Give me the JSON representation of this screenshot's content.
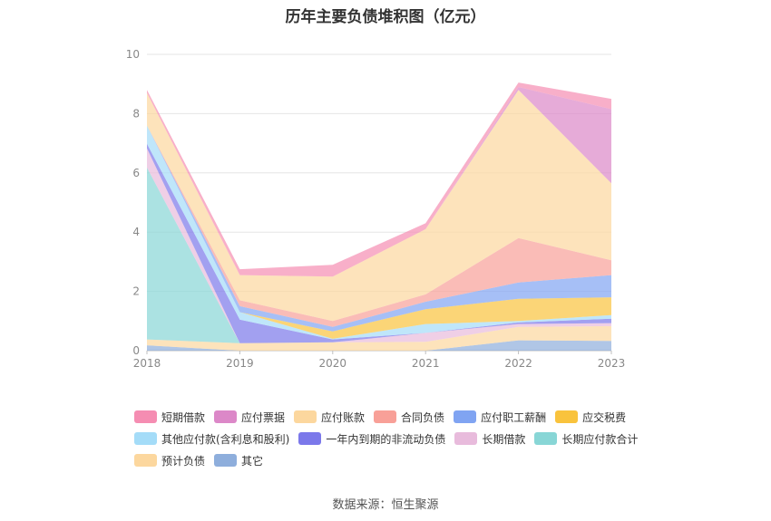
{
  "chart_data": {
    "type": "area",
    "stacked": true,
    "title": "历年主要负债堆积图（亿元）",
    "categories": [
      "2018",
      "2019",
      "2020",
      "2021",
      "2022",
      "2023"
    ],
    "ylim": [
      0,
      10
    ],
    "yticks": [
      0,
      2,
      4,
      6,
      8,
      10
    ],
    "grid": true,
    "legend_position": "bottom",
    "series": [
      {
        "name": "其它",
        "color": "#8eaedc",
        "values": [
          0.18,
          0.0,
          0.0,
          0.0,
          0.35,
          0.33
        ]
      },
      {
        "name": "预计负债",
        "color": "#fcd79e",
        "values": [
          0.2,
          0.25,
          0.28,
          0.3,
          0.45,
          0.5
        ]
      },
      {
        "name": "长期应付款合计",
        "color": "#88d6d6",
        "values": [
          5.8,
          0.0,
          0.0,
          0.0,
          0.0,
          0.0
        ]
      },
      {
        "name": "长期借款",
        "color": "#e8bbdc",
        "values": [
          0.65,
          0.0,
          0.0,
          0.3,
          0.1,
          0.1
        ]
      },
      {
        "name": "一年内到期的非流动负债",
        "color": "#7b78ea",
        "values": [
          0.15,
          0.8,
          0.1,
          0.0,
          0.05,
          0.15
        ]
      },
      {
        "name": "其他应付款(含利息和股利)",
        "color": "#a4dcf8",
        "values": [
          0.62,
          0.25,
          0.02,
          0.3,
          0.05,
          0.12
        ]
      },
      {
        "name": "应交税费",
        "color": "#f9c33d",
        "values": [
          0.0,
          0.0,
          0.25,
          0.5,
          0.75,
          0.6
        ]
      },
      {
        "name": "应付职工薪酬",
        "color": "#80a4f2",
        "values": [
          0.0,
          0.2,
          0.15,
          0.25,
          0.55,
          0.75
        ]
      },
      {
        "name": "合同负债",
        "color": "#f8a098",
        "values": [
          0.0,
          0.2,
          0.2,
          0.25,
          1.5,
          0.5
        ]
      },
      {
        "name": "应付账款",
        "color": "#fcd79e",
        "values": [
          1.1,
          0.85,
          1.5,
          2.2,
          5.0,
          2.6
        ]
      },
      {
        "name": "应付票据",
        "color": "#dc88c8",
        "values": [
          0.0,
          0.0,
          0.0,
          0.0,
          0.1,
          2.5
        ]
      },
      {
        "name": "短期借款",
        "color": "#f58db2",
        "values": [
          0.1,
          0.2,
          0.4,
          0.2,
          0.15,
          0.35
        ]
      }
    ],
    "legend": [
      {
        "name": "短期借款",
        "color": "#f58db2"
      },
      {
        "name": "应付票据",
        "color": "#dc88c8"
      },
      {
        "name": "应付账款",
        "color": "#fcd79e"
      },
      {
        "name": "合同负债",
        "color": "#f8a098"
      },
      {
        "name": "应付职工薪酬",
        "color": "#80a4f2"
      },
      {
        "name": "应交税费",
        "color": "#f9c33d"
      },
      {
        "name": "其他应付款(含利息和股利)",
        "color": "#a4dcf8"
      },
      {
        "name": "一年内到期的非流动负债",
        "color": "#7b78ea"
      },
      {
        "name": "长期借款",
        "color": "#e8bbdc"
      },
      {
        "name": "长期应付款合计",
        "color": "#88d6d6"
      },
      {
        "name": "预计负债",
        "color": "#fcd79e"
      },
      {
        "name": "其它",
        "color": "#8eaedc"
      }
    ]
  },
  "source": "数据来源：恒生聚源"
}
